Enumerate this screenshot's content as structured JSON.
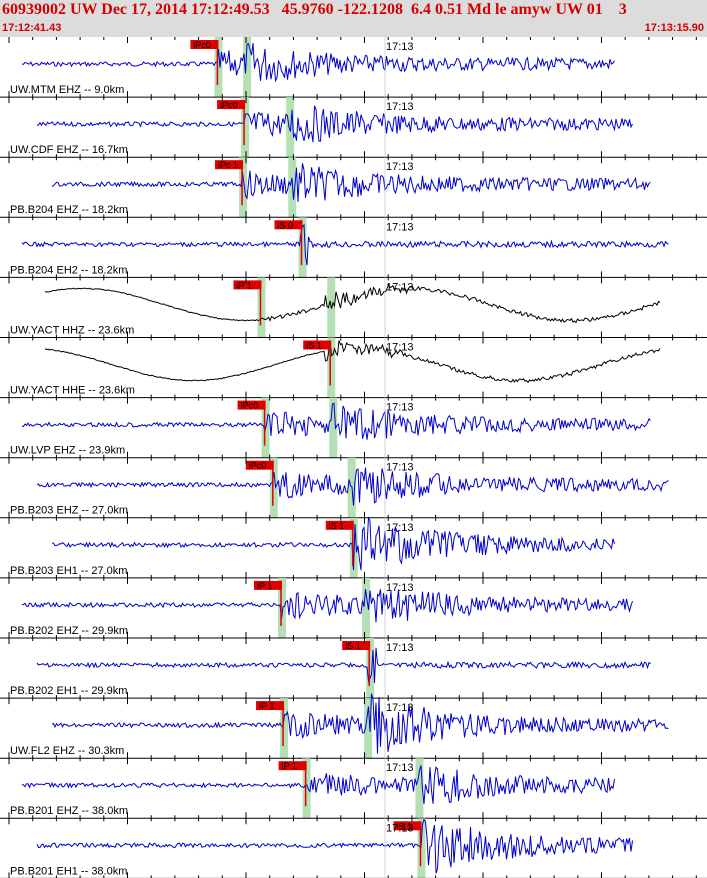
{
  "header": {
    "title": "60939002 UW Dec 17, 2014 17:12:49.53   45.9760 -122.1208  6.4 0.51 Md le amyw UW 01    3",
    "start_time": "17:12:41.43",
    "end_time": "17:13:15.90"
  },
  "colors": {
    "header_text": "#d40000",
    "trace_blue": "#0000cc",
    "trace_black": "#000000",
    "pick_box": "#e00000",
    "pick_band": "#b5e0b5",
    "header_bg": "#dcdcdc"
  },
  "chart_data": {
    "type": "seismogram",
    "time_range": [
      "17:12:41.43",
      "17:13:15.90"
    ],
    "tick_label": "17:13",
    "channels": [
      {
        "label": "UW.MTM EHZ -- 9.0km",
        "color": "blue",
        "pick": "iPc0",
        "pick_s": 10.6,
        "s_band": 12.0,
        "amplitude": "medium"
      },
      {
        "label": "UW.CDF EHZ -- 16.7km",
        "color": "blue",
        "pick": "iPc0",
        "pick_s": 11.9,
        "s_band": 14.1,
        "amplitude": "medium"
      },
      {
        "label": "PB.B204 EHZ -- 18.2km",
        "color": "blue",
        "pick": "iPc 1",
        "pick_s": 11.8,
        "s_band": 14.2,
        "amplitude": "medium"
      },
      {
        "label": "PB.B204 EH2 -- 18.2km",
        "color": "blue",
        "pick": "iS 0",
        "pick_s": 14.7,
        "s_band": 14.7,
        "amplitude": "low"
      },
      {
        "label": "UW.YACT HHZ -- 23.6km",
        "color": "black",
        "pick": "iP 1",
        "pick_s": 12.7,
        "s_band": 16.1,
        "amplitude": "long-period"
      },
      {
        "label": "UW.YACT HHE -- 23.6km",
        "color": "black",
        "pick": "iS 1",
        "pick_s": 16.1,
        "s_band": 16.1,
        "amplitude": "long-period"
      },
      {
        "label": "UW.LVP EHZ -- 23.9km",
        "color": "blue",
        "pick": "iPc0",
        "pick_s": 12.9,
        "s_band": 16.2,
        "amplitude": "medium"
      },
      {
        "label": "PB.B203 EHZ -- 27.0km",
        "color": "blue",
        "pick": "iPc0",
        "pick_s": 13.3,
        "s_band": 17.1,
        "amplitude": "medium"
      },
      {
        "label": "PB.B203 EH1 -- 27.0km",
        "color": "blue",
        "pick": "iS 1",
        "pick_s": 17.2,
        "s_band": 17.2,
        "amplitude": "high"
      },
      {
        "label": "PB.B202 EHZ -- 29.9km",
        "color": "blue",
        "pick": "iP 1",
        "pick_s": 13.7,
        "s_band": 17.8,
        "amplitude": "medium"
      },
      {
        "label": "PB.B202 EH1 -- 29.9km",
        "color": "blue",
        "pick": "iS 1",
        "pick_s": 18.0,
        "s_band": 18.0,
        "amplitude": "low"
      },
      {
        "label": "UW.FL2 EHZ -- 30.3km",
        "color": "blue",
        "pick": "iP 1",
        "pick_s": 13.8,
        "s_band": 17.9,
        "amplitude": "high"
      },
      {
        "label": "PB.B201 EHZ -- 38.0km",
        "color": "blue",
        "pick": "iP 1",
        "pick_s": 14.9,
        "s_band": 20.4,
        "amplitude": "medium"
      },
      {
        "label": "PB.B201 EH1 -- 38.0km",
        "color": "blue",
        "pick": "iS 1",
        "pick_s": 20.5,
        "s_band": 20.5,
        "amplitude": "high"
      }
    ]
  }
}
